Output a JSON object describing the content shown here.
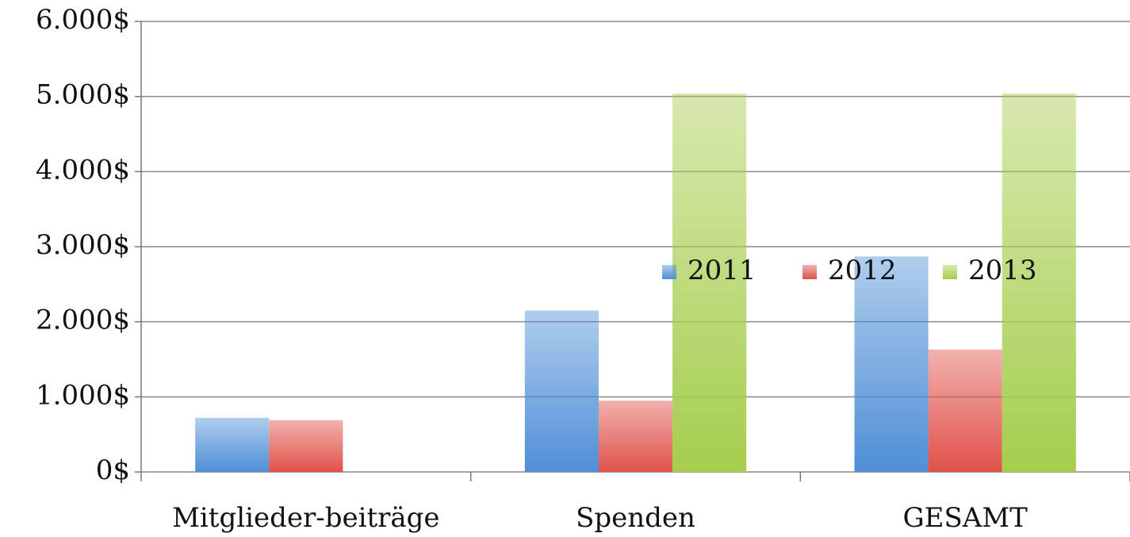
{
  "chart_data": {
    "type": "bar",
    "categories": [
      "Mitglieder-beiträge",
      "Spenden",
      "GESAMT"
    ],
    "series": [
      {
        "name": "2011",
        "color": "#4f8fd6",
        "values": [
          720,
          2150,
          2870
        ]
      },
      {
        "name": "2012",
        "color": "#e0524a",
        "values": [
          690,
          950,
          1630
        ]
      },
      {
        "name": "2013",
        "color": "#a6cd4d",
        "values": [
          0,
          5040,
          5040
        ]
      }
    ],
    "ylim": [
      0,
      6000
    ],
    "yticks": [
      {
        "value": 0,
        "label": "0$"
      },
      {
        "value": 1000,
        "label": "1.000$"
      },
      {
        "value": 2000,
        "label": "2.000$"
      },
      {
        "value": 3000,
        "label": "3.000$"
      },
      {
        "value": 4000,
        "label": "4.000$"
      },
      {
        "value": 5000,
        "label": "5.000$"
      },
      {
        "value": 6000,
        "label": "6.000$"
      }
    ],
    "grid": true,
    "legend": "right"
  }
}
